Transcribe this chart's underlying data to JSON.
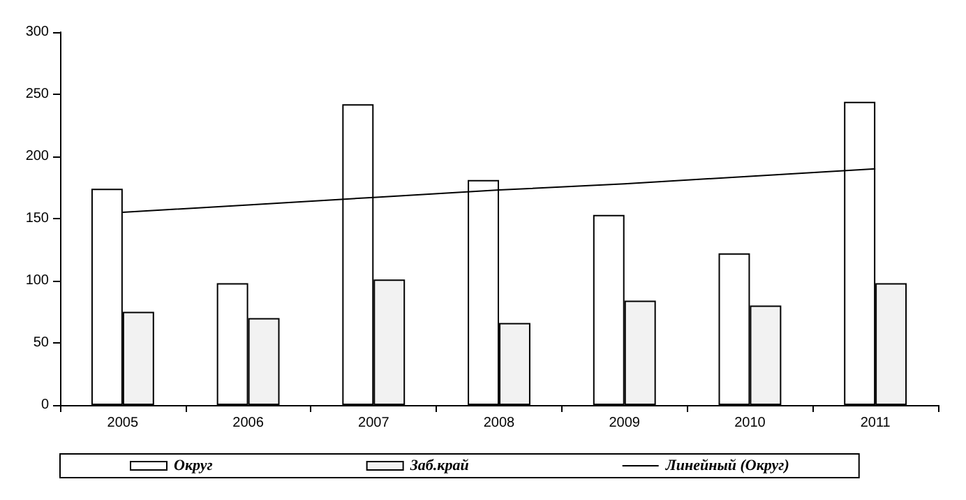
{
  "chart_data": {
    "type": "bar",
    "categories": [
      "2005",
      "2006",
      "2007",
      "2008",
      "2009",
      "2010",
      "2011"
    ],
    "series": [
      {
        "name": "Округ",
        "color": "#ffffff",
        "values": [
          174,
          98,
          242,
          181,
          153,
          122,
          244
        ]
      },
      {
        "name": "Заб.край",
        "color": "#f2f2f2",
        "values": [
          75,
          70,
          101,
          66,
          84,
          80,
          98
        ]
      },
      {
        "name": "Линейный (Округ)",
        "type": "line",
        "color": "#000000",
        "values": [
          155,
          161,
          167,
          173,
          178,
          184,
          190
        ]
      }
    ],
    "ylim": [
      0,
      300
    ],
    "yticks": [
      0,
      50,
      100,
      150,
      200,
      250,
      300
    ],
    "grid": false,
    "legend": "bottom",
    "marker": "none",
    "line_style": "solid"
  }
}
